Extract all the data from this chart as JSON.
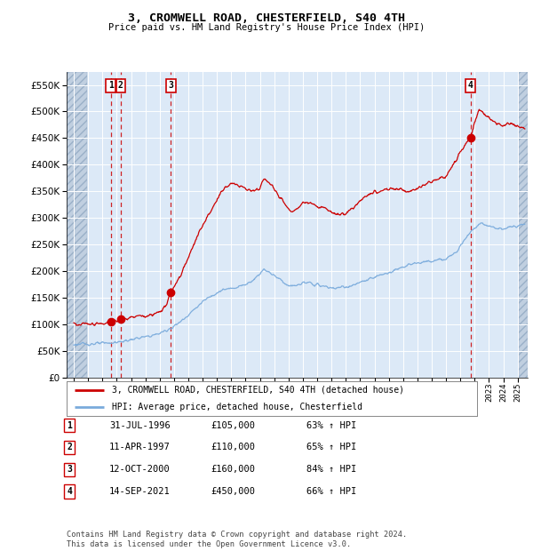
{
  "title": "3, CROMWELL ROAD, CHESTERFIELD, S40 4TH",
  "subtitle": "Price paid vs. HM Land Registry's House Price Index (HPI)",
  "fig_bg_color": "#ffffff",
  "plot_bg_color": "#dce9f7",
  "hatch_color": "#c0cfe0",
  "grid_color": "#ffffff",
  "ylim": [
    0,
    575000
  ],
  "yticks": [
    0,
    50000,
    100000,
    150000,
    200000,
    250000,
    300000,
    350000,
    400000,
    450000,
    500000,
    550000
  ],
  "xlim_start": 1993.5,
  "xlim_end": 2025.7,
  "xticks": [
    1994,
    1995,
    1996,
    1997,
    1998,
    1999,
    2000,
    2001,
    2002,
    2003,
    2004,
    2005,
    2006,
    2007,
    2008,
    2009,
    2010,
    2011,
    2012,
    2013,
    2014,
    2015,
    2016,
    2017,
    2018,
    2019,
    2020,
    2021,
    2022,
    2023,
    2024,
    2025
  ],
  "sales": [
    {
      "id": 1,
      "date_label": "31-JUL-1996",
      "year": 1996.58,
      "price": 105000,
      "pct": "63%",
      "dir": "↑"
    },
    {
      "id": 2,
      "date_label": "11-APR-1997",
      "year": 1997.28,
      "price": 110000,
      "pct": "65%",
      "dir": "↑"
    },
    {
      "id": 3,
      "date_label": "12-OCT-2000",
      "year": 2000.78,
      "price": 160000,
      "pct": "84%",
      "dir": "↑"
    },
    {
      "id": 4,
      "date_label": "14-SEP-2021",
      "year": 2021.7,
      "price": 450000,
      "pct": "66%",
      "dir": "↑"
    }
  ],
  "red_line_color": "#cc0000",
  "blue_line_color": "#7aabdc",
  "sale_marker_color": "#cc0000",
  "footnote": "Contains HM Land Registry data © Crown copyright and database right 2024.\nThis data is licensed under the Open Government Licence v3.0.",
  "legend_label_red": "3, CROMWELL ROAD, CHESTERFIELD, S40 4TH (detached house)",
  "legend_label_blue": "HPI: Average price, detached house, Chesterfield",
  "blue_anchors": [
    [
      1994.0,
      62000
    ],
    [
      1994.5,
      62500
    ],
    [
      1995.0,
      63000
    ],
    [
      1995.5,
      63500
    ],
    [
      1996.0,
      64000
    ],
    [
      1996.5,
      65000
    ],
    [
      1997.0,
      66000
    ],
    [
      1997.5,
      68000
    ],
    [
      1998.0,
      71000
    ],
    [
      1998.5,
      74000
    ],
    [
      1999.0,
      76000
    ],
    [
      1999.5,
      79000
    ],
    [
      2000.0,
      83000
    ],
    [
      2000.5,
      89000
    ],
    [
      2001.0,
      96000
    ],
    [
      2001.5,
      106000
    ],
    [
      2002.0,
      118000
    ],
    [
      2002.5,
      130000
    ],
    [
      2003.0,
      142000
    ],
    [
      2003.5,
      152000
    ],
    [
      2004.0,
      160000
    ],
    [
      2004.5,
      165000
    ],
    [
      2005.0,
      167000
    ],
    [
      2005.5,
      171000
    ],
    [
      2006.0,
      175000
    ],
    [
      2006.5,
      183000
    ],
    [
      2007.0,
      195000
    ],
    [
      2007.3,
      205000
    ],
    [
      2007.5,
      200000
    ],
    [
      2008.0,
      192000
    ],
    [
      2008.5,
      183000
    ],
    [
      2009.0,
      172000
    ],
    [
      2009.5,
      172000
    ],
    [
      2010.0,
      178000
    ],
    [
      2010.5,
      177000
    ],
    [
      2011.0,
      174000
    ],
    [
      2011.5,
      171000
    ],
    [
      2012.0,
      168000
    ],
    [
      2012.5,
      169000
    ],
    [
      2013.0,
      170000
    ],
    [
      2013.5,
      173000
    ],
    [
      2014.0,
      178000
    ],
    [
      2014.5,
      183000
    ],
    [
      2015.0,
      188000
    ],
    [
      2015.5,
      193000
    ],
    [
      2016.0,
      197000
    ],
    [
      2016.5,
      203000
    ],
    [
      2017.0,
      208000
    ],
    [
      2017.5,
      212000
    ],
    [
      2018.0,
      215000
    ],
    [
      2018.5,
      217000
    ],
    [
      2019.0,
      218000
    ],
    [
      2019.5,
      221000
    ],
    [
      2020.0,
      222000
    ],
    [
      2020.5,
      232000
    ],
    [
      2021.0,
      248000
    ],
    [
      2021.5,
      268000
    ],
    [
      2022.0,
      282000
    ],
    [
      2022.5,
      290000
    ],
    [
      2023.0,
      285000
    ],
    [
      2023.5,
      280000
    ],
    [
      2024.0,
      280000
    ],
    [
      2024.5,
      283000
    ],
    [
      2025.0,
      285000
    ],
    [
      2025.5,
      288000
    ]
  ],
  "red_anchors": [
    [
      1994.0,
      100000
    ],
    [
      1994.5,
      100500
    ],
    [
      1995.0,
      101000
    ],
    [
      1995.5,
      101500
    ],
    [
      1996.0,
      102000
    ],
    [
      1996.58,
      105000
    ],
    [
      1997.28,
      110000
    ],
    [
      1997.5,
      111000
    ],
    [
      1998.0,
      113000
    ],
    [
      1998.5,
      115000
    ],
    [
      1999.0,
      116000
    ],
    [
      1999.5,
      118000
    ],
    [
      2000.0,
      122000
    ],
    [
      2000.5,
      138000
    ],
    [
      2000.78,
      160000
    ],
    [
      2001.0,
      168000
    ],
    [
      2001.5,
      195000
    ],
    [
      2002.0,
      225000
    ],
    [
      2002.5,
      258000
    ],
    [
      2003.0,
      285000
    ],
    [
      2003.5,
      310000
    ],
    [
      2004.0,
      335000
    ],
    [
      2004.5,
      355000
    ],
    [
      2005.0,
      365000
    ],
    [
      2005.5,
      362000
    ],
    [
      2006.0,
      355000
    ],
    [
      2006.5,
      350000
    ],
    [
      2007.0,
      355000
    ],
    [
      2007.3,
      375000
    ],
    [
      2007.5,
      370000
    ],
    [
      2008.0,
      355000
    ],
    [
      2008.5,
      335000
    ],
    [
      2009.0,
      315000
    ],
    [
      2009.3,
      310000
    ],
    [
      2009.5,
      315000
    ],
    [
      2010.0,
      330000
    ],
    [
      2010.5,
      328000
    ],
    [
      2011.0,
      322000
    ],
    [
      2011.5,
      318000
    ],
    [
      2012.0,
      310000
    ],
    [
      2012.5,
      305000
    ],
    [
      2013.0,
      308000
    ],
    [
      2013.5,
      318000
    ],
    [
      2014.0,
      330000
    ],
    [
      2014.5,
      342000
    ],
    [
      2015.0,
      348000
    ],
    [
      2015.5,
      352000
    ],
    [
      2016.0,
      355000
    ],
    [
      2016.5,
      355000
    ],
    [
      2017.0,
      352000
    ],
    [
      2017.5,
      350000
    ],
    [
      2018.0,
      355000
    ],
    [
      2018.5,
      362000
    ],
    [
      2019.0,
      368000
    ],
    [
      2019.5,
      375000
    ],
    [
      2020.0,
      380000
    ],
    [
      2020.5,
      398000
    ],
    [
      2021.0,
      425000
    ],
    [
      2021.7,
      450000
    ],
    [
      2022.0,
      480000
    ],
    [
      2022.3,
      505000
    ],
    [
      2022.5,
      500000
    ],
    [
      2023.0,
      490000
    ],
    [
      2023.5,
      478000
    ],
    [
      2024.0,
      475000
    ],
    [
      2024.5,
      478000
    ],
    [
      2025.0,
      472000
    ],
    [
      2025.5,
      468000
    ]
  ]
}
